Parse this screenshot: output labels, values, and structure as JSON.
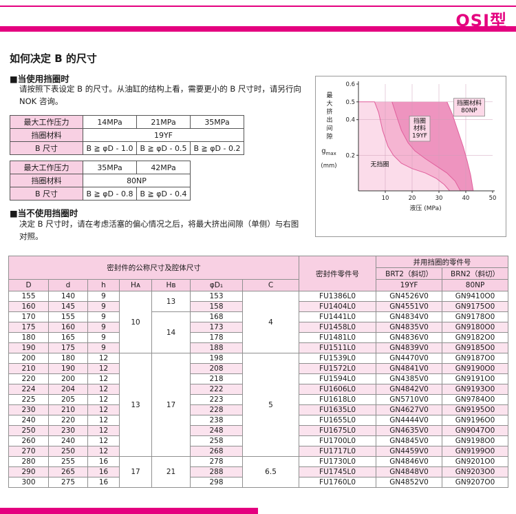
{
  "colors": {
    "accent": "#e4007f",
    "table_header_pink": "#f8d0e3",
    "row_band_pink": "#fbe3ee"
  },
  "header": {
    "model": "OSI型"
  },
  "page_title": "如何决定 B 的尺寸",
  "with_ring": {
    "heading": "■当使用挡圈时",
    "body": "请按照下表设定 B 的尺寸。从油缸的结构上看，需要更小的 B 尺寸时，请另行向 NOK 咨询。"
  },
  "without_ring": {
    "heading": "■当不使用挡圈时",
    "body": "决定 B 尺寸时，请在考虑活塞的偏心情况之后，将最大挤出间隙（单侧）与右图对照。"
  },
  "pressure_tables": [
    {
      "rows": [
        [
          {
            "t": "最大工作压力",
            "h": 1
          },
          {
            "t": "14MPa"
          },
          {
            "t": "21MPa"
          },
          {
            "t": "35MPa"
          }
        ],
        [
          {
            "t": "挡圈材料",
            "h": 1
          },
          {
            "t": "19YF",
            "cs": 3
          }
        ],
        [
          {
            "t": "B 尺寸",
            "h": 1
          },
          {
            "t": "B ≧ φD - 1.0"
          },
          {
            "t": "B ≧ φD - 0.5"
          },
          {
            "t": "B ≧ φD - 0.2"
          }
        ]
      ]
    },
    {
      "rows": [
        [
          {
            "t": "最大工作压力",
            "h": 1
          },
          {
            "t": "35MPa"
          },
          {
            "t": "42MPa"
          }
        ],
        [
          {
            "t": "挡圈材料",
            "h": 1
          },
          {
            "t": "80NP",
            "cs": 2
          }
        ],
        [
          {
            "t": "B 尺寸",
            "h": 1
          },
          {
            "t": "B ≧ φD - 0.8"
          },
          {
            "t": "B ≧ φD - 0.4"
          }
        ]
      ]
    }
  ],
  "chart_data": {
    "type": "area",
    "xlabel": "液压 (MPa)",
    "ylabel_cn": "最大挤出间隙",
    "ylabel_sym": "g",
    "ylabel_sub": "max",
    "ylabel_unit": "(mm)",
    "xlim": [
      0,
      50
    ],
    "ylim": [
      0,
      0.6
    ],
    "x_ticks": [
      10,
      20,
      30,
      40,
      50
    ],
    "y_ticks": [
      0.2,
      0.4,
      0.5,
      0.6
    ],
    "regions": [
      {
        "label": "无挡圈",
        "fill": "#fbdcea",
        "boundary": [
          [
            0,
            0.5
          ],
          [
            6,
            0.5
          ],
          [
            7.5,
            0.44
          ],
          [
            9,
            0.34
          ],
          [
            11,
            0.25
          ],
          [
            13,
            0.2
          ],
          [
            16,
            0.155
          ],
          [
            20,
            0.125
          ],
          [
            25,
            0.1
          ],
          [
            29,
            0.07
          ],
          [
            32,
            0.035
          ],
          [
            34,
            0
          ]
        ]
      },
      {
        "label": "挡圈材料 19YF",
        "fill": "#f5b5d2",
        "boundary": [
          [
            12.5,
            0.5
          ],
          [
            14,
            0.43
          ],
          [
            16,
            0.34
          ],
          [
            18.5,
            0.27
          ],
          [
            21,
            0.225
          ],
          [
            25,
            0.18
          ],
          [
            29,
            0.14
          ],
          [
            33,
            0.1
          ],
          [
            36,
            0.055
          ],
          [
            38,
            0
          ]
        ]
      },
      {
        "label": "挡圈材料 80NP",
        "fill": "#ee94bf",
        "boundary": [
          [
            33,
            0.5
          ],
          [
            35,
            0.43
          ],
          [
            37,
            0.34
          ],
          [
            39,
            0.25
          ],
          [
            40.5,
            0.17
          ],
          [
            41.8,
            0.09
          ],
          [
            42.8,
            0
          ]
        ]
      }
    ],
    "annotations": [
      {
        "text": [
          "无挡圈"
        ],
        "x": 4.5,
        "y": 0.15,
        "box": false
      },
      {
        "text": [
          "挡圈",
          "材料",
          "19YF"
        ],
        "x": 19,
        "y": 0.42,
        "box": true
      },
      {
        "text": [
          "挡圈材料",
          "80NP"
        ],
        "x": 35.5,
        "y": 0.52,
        "box": true
      }
    ]
  },
  "main_table": {
    "header": {
      "dims_group": "密封件的公称尺寸及腔体尺寸",
      "part_no": "密封件零件号",
      "backup_group": "并用挡圈的零件号",
      "brt2": "BRT2（斜切）",
      "brn2": "BRN2（斜切）",
      "brt2_material": "19YF",
      "brn2_material": "80NP",
      "cols": [
        "D",
        "d",
        "h",
        "Hᴀ",
        "Hʙ",
        "φD₁",
        "C"
      ]
    },
    "col_keys": [
      "D",
      "d",
      "h",
      "HA",
      "HB",
      "phiD1",
      "C",
      "part_no",
      "brt2",
      "brn2"
    ],
    "rows": [
      [
        "155",
        "140",
        "9",
        [
          "10",
          6
        ],
        [
          "13",
          2
        ],
        "153",
        [
          "4",
          6
        ],
        "FU1386L0",
        "GN4526V0",
        "GN9410O0"
      ],
      [
        "160",
        "145",
        "9",
        null,
        null,
        "158",
        null,
        "FU1404L0",
        "GN4551V0",
        "GN9175O0"
      ],
      [
        "170",
        "155",
        "9",
        null,
        [
          "14",
          4
        ],
        "168",
        null,
        "FU1441L0",
        "GN4834V0",
        "GN9178O0"
      ],
      [
        "175",
        "160",
        "9",
        null,
        null,
        "173",
        null,
        "FU1458L0",
        "GN4835V0",
        "GN9180O0"
      ],
      [
        "180",
        "165",
        "9",
        null,
        null,
        "178",
        null,
        "FU1481L0",
        "GN4836V0",
        "GN9182O0"
      ],
      [
        "190",
        "175",
        "9",
        null,
        null,
        "188",
        null,
        "FU1511L0",
        "GN4839V0",
        "GN9185O0"
      ],
      [
        "200",
        "180",
        "12",
        [
          "13",
          10
        ],
        [
          "17",
          10
        ],
        "198",
        [
          "5",
          10
        ],
        "FU1539L0",
        "GN4470V0",
        "GN9187O0"
      ],
      [
        "210",
        "190",
        "12",
        null,
        null,
        "208",
        null,
        "FU1572L0",
        "GN4841V0",
        "GN9190O0"
      ],
      [
        "220",
        "200",
        "12",
        null,
        null,
        "218",
        null,
        "FU1594L0",
        "GN4385V0",
        "GN9191O0"
      ],
      [
        "224",
        "204",
        "12",
        null,
        null,
        "222",
        null,
        "FU1606L0",
        "GN4842V0",
        "GN9193O0"
      ],
      [
        "225",
        "205",
        "12",
        null,
        null,
        "223",
        null,
        "FU1618L0",
        "GN5710V0",
        "GN9784O0"
      ],
      [
        "230",
        "210",
        "12",
        null,
        null,
        "228",
        null,
        "FU1635L0",
        "GN4627V0",
        "GN9195O0"
      ],
      [
        "240",
        "220",
        "12",
        null,
        null,
        "238",
        null,
        "FU1655L0",
        "GN4444V0",
        "GN9196O0"
      ],
      [
        "250",
        "230",
        "12",
        null,
        null,
        "248",
        null,
        "FU1675L0",
        "GN4635V0",
        "GN9047O0"
      ],
      [
        "260",
        "240",
        "12",
        null,
        null,
        "258",
        null,
        "FU1700L0",
        "GN4845V0",
        "GN9198O0"
      ],
      [
        "270",
        "250",
        "12",
        null,
        null,
        "268",
        null,
        "FU1717L0",
        "GN4459V0",
        "GN9199O0"
      ],
      [
        "280",
        "255",
        "16",
        [
          "17",
          3
        ],
        [
          "21",
          3
        ],
        "278",
        [
          "6.5",
          3
        ],
        "FU1730L0",
        "GN4846V0",
        "GN9201O0"
      ],
      [
        "290",
        "265",
        "16",
        null,
        null,
        "288",
        null,
        "FU1745L0",
        "GN4848V0",
        "GN9203O0"
      ],
      [
        "300",
        "275",
        "16",
        null,
        null,
        "298",
        null,
        "FU1760L0",
        "GN4852V0",
        "GN9207O0"
      ]
    ]
  }
}
